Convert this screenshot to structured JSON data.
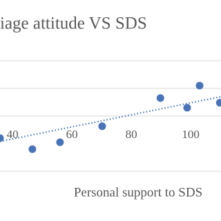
{
  "chart_data": {
    "type": "scatter",
    "title": "iage attitude VS SDS",
    "x_label": "Personal support to SDS",
    "x": [
      35.8,
      46.7,
      56,
      70.2,
      89.8,
      98.8,
      103,
      109.8
    ],
    "values": [
      2.2,
      1.8,
      2.05,
      2.63,
      3.65,
      3.3,
      4.1,
      3.48
    ],
    "color": "#4a74b8",
    "xlim": [
      35.8,
      110.2
    ],
    "xticks": [
      40,
      60,
      80,
      100
    ],
    "ylim": [
      0,
      7.2
    ],
    "yticks": [
      1,
      3,
      4,
      5
    ],
    "ytick_labels": false,
    "grid": true,
    "trendline": {
      "x": [
        35.8,
        110.2
      ],
      "y": [
        2.08,
        3.7
      ],
      "style": "dotted"
    }
  }
}
